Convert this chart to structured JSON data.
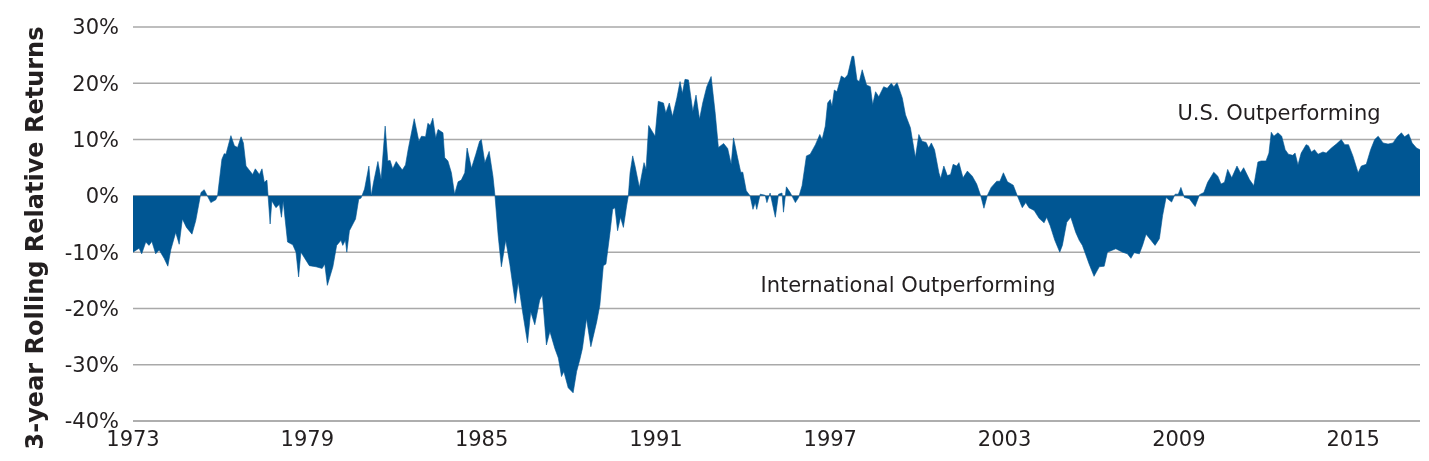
{
  "chart_data": {
    "type": "area",
    "ylabel": "3-year Rolling Relative Returns",
    "color": "#005693",
    "grid": "y",
    "xlim": [
      1973,
      2017.3
    ],
    "xticks": [
      1973,
      1979,
      1985,
      1991,
      1997,
      2003,
      2009,
      2015
    ],
    "ylim": [
      -40,
      30
    ],
    "yticks": [
      {
        "value": -40,
        "label": "-40%"
      },
      {
        "value": -30,
        "label": "-30%"
      },
      {
        "value": -20,
        "label": "-20%"
      },
      {
        "value": -10,
        "label": "-10%"
      },
      {
        "value": 0,
        "label": "0%"
      },
      {
        "value": 10,
        "label": "10%"
      },
      {
        "value": 20,
        "label": "20%"
      },
      {
        "value": 30,
        "label": "30%"
      }
    ],
    "annotations": [
      "U.S. Outperforming",
      "International Outperforming"
    ],
    "x": [
      1973.0,
      1973.21,
      1973.3,
      1973.44,
      1973.55,
      1973.65,
      1973.78,
      1973.9,
      1974.07,
      1974.2,
      1974.3,
      1974.47,
      1974.59,
      1974.7,
      1974.84,
      1975.03,
      1975.16,
      1975.34,
      1975.45,
      1975.68,
      1975.85,
      1975.91,
      1976.06,
      1976.14,
      1976.2,
      1976.37,
      1976.49,
      1976.6,
      1976.72,
      1976.8,
      1976.89,
      1977.12,
      1977.21,
      1977.35,
      1977.44,
      1977.52,
      1977.61,
      1977.65,
      1977.72,
      1977.78,
      1977.92,
      1978.04,
      1978.11,
      1978.17,
      1978.32,
      1978.5,
      1978.61,
      1978.7,
      1978.78,
      1979.07,
      1979.3,
      1979.51,
      1979.6,
      1979.69,
      1979.88,
      1980.01,
      1980.16,
      1980.22,
      1980.31,
      1980.36,
      1980.45,
      1980.66,
      1980.77,
      1980.85,
      1980.97,
      1981.12,
      1981.2,
      1981.28,
      1981.43,
      1981.54,
      1981.68,
      1981.77,
      1981.85,
      1981.94,
      1982.06,
      1982.17,
      1982.27,
      1982.38,
      1982.47,
      1982.68,
      1982.84,
      1982.93,
      1983.07,
      1983.15,
      1983.23,
      1983.32,
      1983.42,
      1983.5,
      1983.67,
      1983.73,
      1983.84,
      1983.96,
      1984.07,
      1984.19,
      1984.3,
      1984.42,
      1984.5,
      1984.65,
      1984.8,
      1984.93,
      1984.99,
      1985.11,
      1985.26,
      1985.39,
      1985.46,
      1985.57,
      1985.68,
      1985.83,
      1985.97,
      1986.16,
      1986.26,
      1986.41,
      1986.58,
      1986.69,
      1986.83,
      1987.0,
      1987.09,
      1987.23,
      1987.35,
      1987.52,
      1987.64,
      1987.75,
      1987.83,
      1987.98,
      1988.15,
      1988.27,
      1988.38,
      1988.47,
      1988.61,
      1988.76,
      1988.96,
      1989.07,
      1989.19,
      1989.28,
      1989.42,
      1989.51,
      1989.59,
      1989.68,
      1989.78,
      1989.88,
      1989.99,
      1990.05,
      1990.11,
      1990.2,
      1990.28,
      1990.43,
      1990.59,
      1990.66,
      1990.75,
      1990.97,
      1991.08,
      1991.26,
      1991.34,
      1991.46,
      1991.57,
      1991.72,
      1991.83,
      1991.91,
      1992.0,
      1992.12,
      1992.27,
      1992.38,
      1992.5,
      1992.61,
      1992.75,
      1992.9,
      1993.04,
      1993.15,
      1993.33,
      1993.47,
      1993.59,
      1993.67,
      1993.81,
      1993.92,
      1993.99,
      1994.11,
      1994.24,
      1994.34,
      1994.42,
      1994.47,
      1994.59,
      1994.76,
      1994.82,
      1994.93,
      1995.11,
      1995.22,
      1995.34,
      1995.39,
      1995.49,
      1995.62,
      1995.8,
      1995.91,
      1996.03,
      1996.18,
      1996.31,
      1996.49,
      1996.64,
      1996.72,
      1996.83,
      1996.91,
      1997.0,
      1997.06,
      1997.14,
      1997.23,
      1997.38,
      1997.5,
      1997.6,
      1997.75,
      1997.81,
      1997.92,
      1998.0,
      1998.1,
      1998.25,
      1998.38,
      1998.46,
      1998.56,
      1998.67,
      1998.84,
      1998.96,
      1999.1,
      1999.19,
      1999.3,
      1999.48,
      1999.59,
      1999.76,
      1999.93,
      2000.05,
      2000.16,
      2000.3,
      2000.39,
      2000.48,
      2000.59,
      2000.74,
      2000.8,
      2000.91,
      2001.03,
      2001.14,
      2001.23,
      2001.35,
      2001.43,
      2001.57,
      2001.72,
      2001.89,
      2002.04,
      2002.18,
      2002.29,
      2002.41,
      2002.54,
      2002.73,
      2002.84,
      2002.96,
      2003.1,
      2003.3,
      2003.44,
      2003.61,
      2003.73,
      2003.84,
      2004.02,
      2004.19,
      2004.36,
      2004.45,
      2004.57,
      2004.73,
      2004.9,
      2004.99,
      2005.14,
      2005.28,
      2005.45,
      2005.57,
      2005.68,
      2005.91,
      2006.08,
      2006.26,
      2006.43,
      2006.54,
      2006.83,
      2007.06,
      2007.23,
      2007.35,
      2007.46,
      2007.64,
      2007.75,
      2007.87,
      2008.04,
      2008.18,
      2008.33,
      2008.44,
      2008.56,
      2008.75,
      2008.87,
      2008.98,
      2009.07,
      2009.19,
      2009.36,
      2009.56,
      2009.71,
      2009.86,
      2009.99,
      2010.2,
      2010.34,
      2010.45,
      2010.57,
      2010.68,
      2010.82,
      2011.0,
      2011.12,
      2011.23,
      2011.43,
      2011.58,
      2011.72,
      2011.83,
      2012.0,
      2012.1,
      2012.18,
      2012.27,
      2012.41,
      2012.54,
      2012.66,
      2012.77,
      2012.92,
      2013.0,
      2013.1,
      2013.21,
      2013.38,
      2013.46,
      2013.56,
      2013.67,
      2013.79,
      2013.96,
      2014.07,
      2014.25,
      2014.42,
      2014.59,
      2014.71,
      2014.84,
      2014.99,
      2015.17,
      2015.28,
      2015.45,
      2015.6,
      2015.74,
      2015.86,
      2016.03,
      2016.2,
      2016.37,
      2016.52,
      2016.66,
      2016.77,
      2016.91,
      2017.03,
      2017.18,
      2017.3
    ],
    "values": [
      -10,
      -9.3,
      -10.3,
      -8.2,
      -8.8,
      -8.1,
      -10.3,
      -9.6,
      -11.1,
      -12.5,
      -9.6,
      -6.5,
      -8.6,
      -4.1,
      -5.6,
      -6.8,
      -4.4,
      0.6,
      1.1,
      -1.2,
      -0.7,
      0,
      6.5,
      7.5,
      7.4,
      10.7,
      8.9,
      8.6,
      10.5,
      9.4,
      5.3,
      3.8,
      4.8,
      3.8,
      4.8,
      2.4,
      2.8,
      0,
      -5,
      -0.9,
      -2.1,
      -1.5,
      -3.8,
      -0.9,
      -8.2,
      -8.7,
      -10,
      -14.4,
      -10,
      -12.4,
      -12.6,
      -12.9,
      -12.1,
      -15.9,
      -12.6,
      -8.8,
      -7.9,
      -8.8,
      -7.9,
      -10,
      -6.2,
      -4.1,
      -0.6,
      -0.4,
      1.2,
      5.3,
      0,
      2.4,
      6.1,
      2.9,
      12.4,
      6.2,
      6.3,
      4.8,
      6.1,
      5.3,
      4.6,
      5.5,
      8.2,
      13.7,
      9.7,
      10.6,
      10.5,
      12.9,
      12.5,
      13.8,
      10.3,
      11.8,
      11.2,
      6.8,
      6.2,
      4.1,
      0.3,
      2.5,
      2.8,
      4.1,
      8.5,
      4.9,
      7.4,
      9.7,
      10,
      5.9,
      7.9,
      3.5,
      0,
      -7.1,
      -12.6,
      -7.9,
      -12.1,
      -19.1,
      -15.3,
      -20.6,
      -26.1,
      -20.6,
      -22.9,
      -18.5,
      -17.6,
      -26.5,
      -24.1,
      -27.1,
      -28.8,
      -32.1,
      -31.2,
      -34.1,
      -35,
      -31.2,
      -29.1,
      -27.1,
      -21.8,
      -26.8,
      -22.4,
      -19.4,
      -12.4,
      -12.1,
      -6.5,
      -2.4,
      -2.1,
      -6.2,
      -3.8,
      -5.6,
      -1.8,
      0,
      4.1,
      7.1,
      5.3,
      1.5,
      5.9,
      4.7,
      12.5,
      10.6,
      16.8,
      16.5,
      14.7,
      16.5,
      14.1,
      17.4,
      20.3,
      18.2,
      20.7,
      20.6,
      15,
      17.9,
      13.6,
      16.5,
      19.4,
      21.2,
      14.7,
      8.6,
      9.3,
      8.4,
      5.6,
      10.3,
      6.8,
      4.2,
      4.2,
      0.9,
      0,
      -2.4,
      -1.2,
      -2.4,
      0.3,
      0.1,
      -1.2,
      0.5,
      -3.8,
      0.3,
      0.5,
      -2.9,
      1.6,
      0.6,
      -1.2,
      -0.3,
      1.8,
      7.1,
      7.4,
      9.1,
      10.9,
      10,
      12.4,
      16.5,
      17.1,
      15.9,
      18.8,
      18.5,
      21.3,
      20.9,
      21.5,
      24.8,
      24.8,
      20.6,
      20.3,
      22.4,
      19.7,
      19.4,
      16.2,
      18.5,
      17.6,
      19.4,
      19.1,
      20,
      19.4,
      20.1,
      17.4,
      14.4,
      12.1,
      6.8,
      10.9,
      9.7,
      9.5,
      8.5,
      9.4,
      8.2,
      4.1,
      3.1,
      5.3,
      3.6,
      3.8,
      5.6,
      5.3,
      5.9,
      3.2,
      4.4,
      3.5,
      2.1,
      0,
      -2.2,
      0.1,
      1.5,
      2.6,
      2.6,
      4.1,
      2.5,
      1.9,
      0,
      -2.1,
      -1.2,
      -2.1,
      -2.6,
      -4,
      -4.8,
      -3.8,
      -5.3,
      -7.9,
      -10,
      -8.8,
      -4.7,
      -3.8,
      -6.5,
      -7.9,
      -8.8,
      -12.1,
      -14.3,
      -12.6,
      -12.5,
      -10,
      -9.4,
      -10,
      -10.3,
      -11.1,
      -10.1,
      -10.3,
      -8.8,
      -6.8,
      -7.9,
      -8.8,
      -7.6,
      -3.5,
      -0.3,
      -1.1,
      0.3,
      0.3,
      1.5,
      -0.3,
      -0.5,
      -1.9,
      0.2,
      0.6,
      2.4,
      4.2,
      3.5,
      2.1,
      2.4,
      4.7,
      3.2,
      5.3,
      4.1,
      5,
      2.9,
      1.8,
      6,
      6.2,
      6.2,
      7.6,
      11.3,
      10.6,
      11.2,
      10.6,
      8.2,
      7.4,
      7.2,
      7.6,
      5.5,
      7.6,
      9.1,
      8.9,
      7.8,
      8.2,
      7.4,
      7.8,
      7.6,
      8.5,
      9.2,
      10,
      9.1,
      9.1,
      7.1,
      4.1,
      5.3,
      5.6,
      8.2,
      10,
      10.6,
      9.4,
      9.2,
      9.4,
      10.5,
      11.2,
      10.5,
      11,
      9.4,
      8.5,
      8.2
    ]
  }
}
